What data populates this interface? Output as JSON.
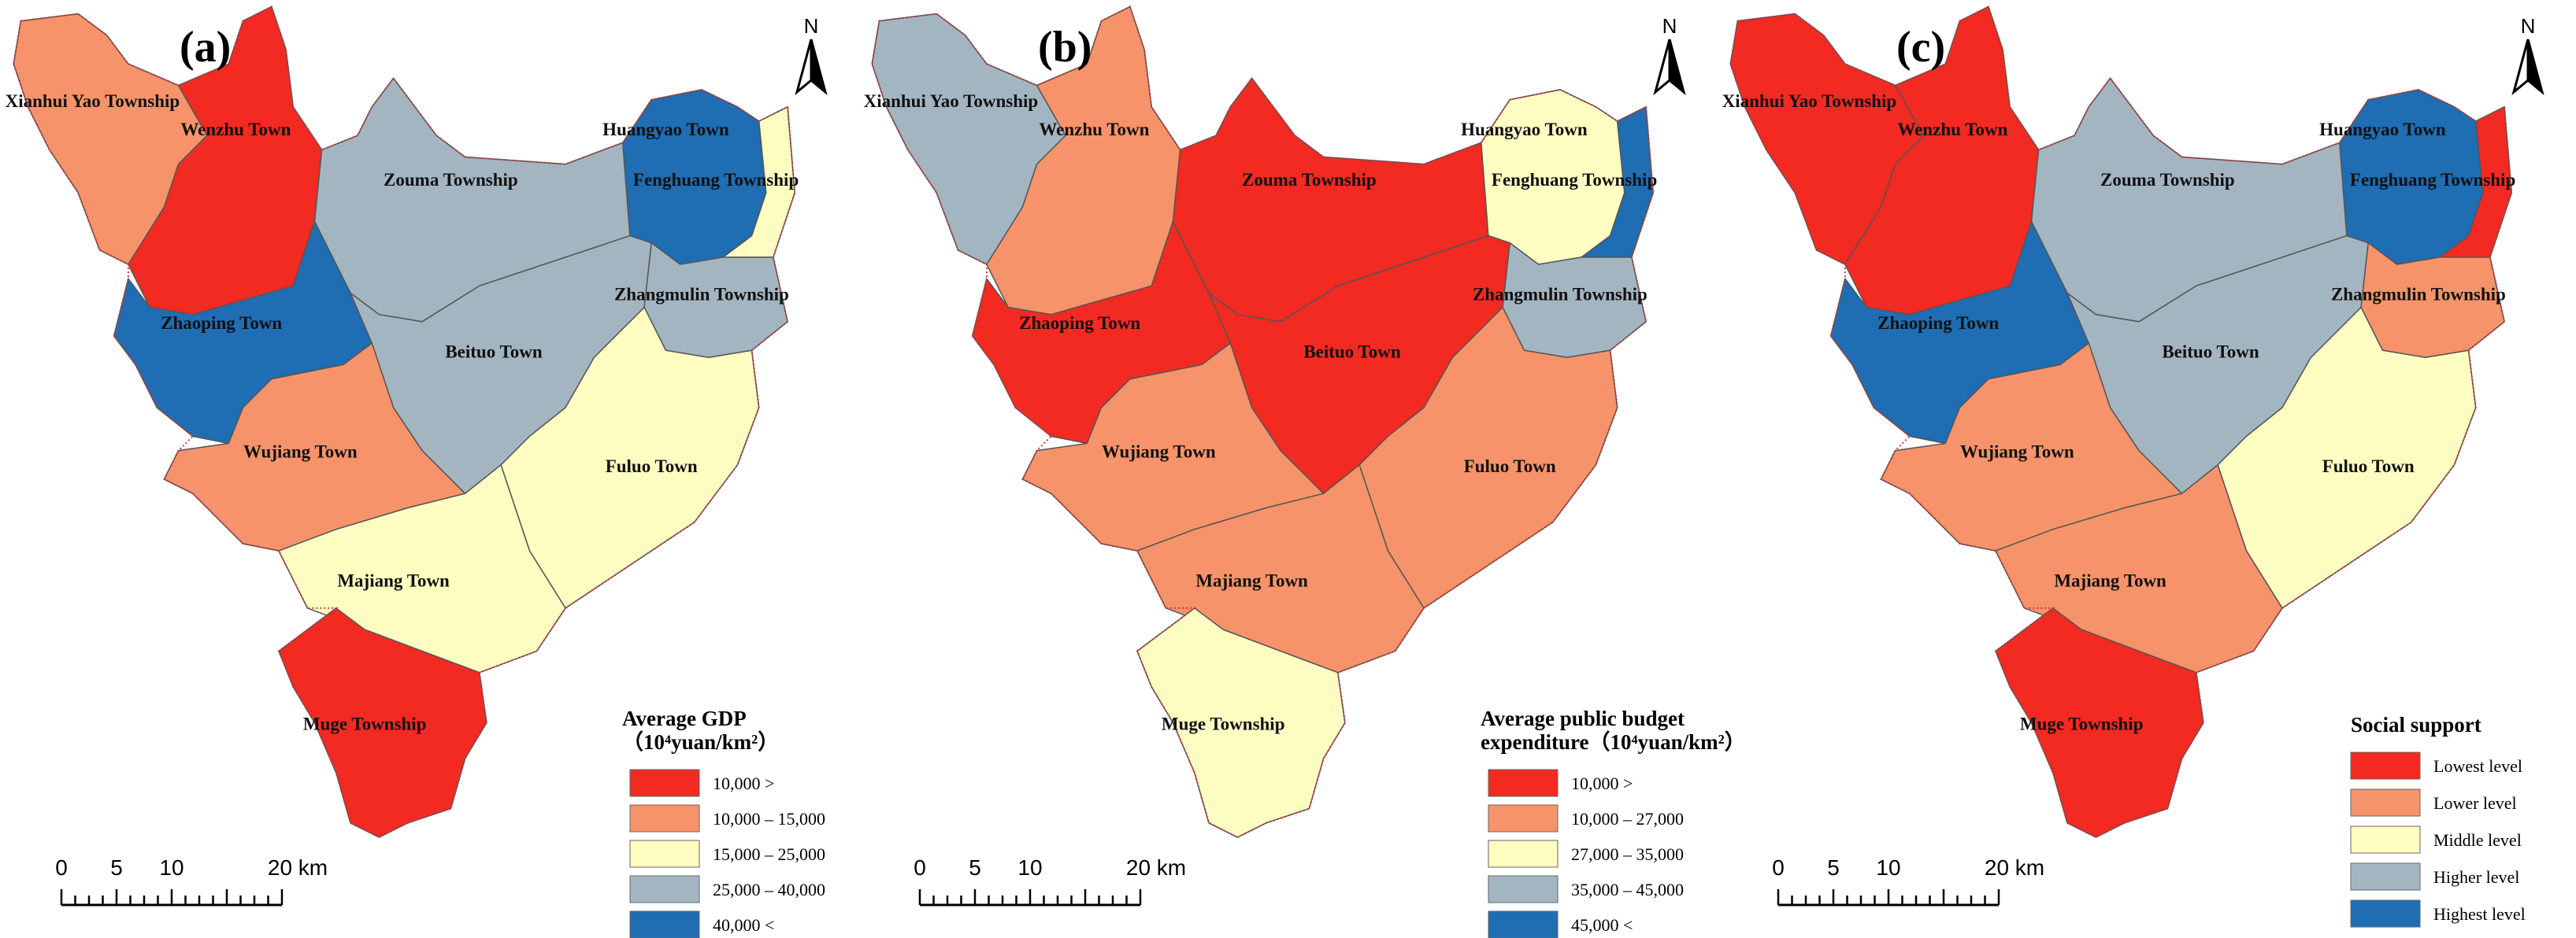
{
  "panels": [
    {
      "id": "a",
      "label": "(a)",
      "legend": {
        "title_lines": [
          "Average GDP",
          "（10⁴yuan/km²）"
        ],
        "classes": [
          {
            "label": "10,000 >",
            "color": "#f22a22"
          },
          {
            "label": "10,000 – 15,000",
            "color": "#f7936a"
          },
          {
            "label": "15,000 – 25,000",
            "color": "#fdfdc2"
          },
          {
            "label": "25,000 – 40,000",
            "color": "#a4b5c2"
          },
          {
            "label": "40,000 <",
            "color": "#1f6db3"
          }
        ]
      },
      "regions": {
        "xianhui": 1,
        "wenzhu": 0,
        "zouma": 3,
        "huangyao": 4,
        "fenghuang": 2,
        "zhaoping": 4,
        "beituo": 3,
        "zhangmulin": 3,
        "wujiang": 1,
        "fuluo": 2,
        "majiang": 2,
        "muge": 0
      }
    },
    {
      "id": "b",
      "label": "(b)",
      "legend": {
        "title_lines": [
          "Average public budget",
          "expenditure（10⁴yuan/km²）"
        ],
        "classes": [
          {
            "label": "10,000 >",
            "color": "#f22a22"
          },
          {
            "label": "10,000 – 27,000",
            "color": "#f7936a"
          },
          {
            "label": "27,000 – 35,000",
            "color": "#fdfdc2"
          },
          {
            "label": "35,000 – 45,000",
            "color": "#a4b5c2"
          },
          {
            "label": "45,000 <",
            "color": "#1f6db3"
          }
        ]
      },
      "regions": {
        "xianhui": 3,
        "wenzhu": 1,
        "zouma": 0,
        "huangyao": 2,
        "fenghuang": 4,
        "zhaoping": 0,
        "beituo": 0,
        "zhangmulin": 3,
        "wujiang": 1,
        "fuluo": 1,
        "majiang": 1,
        "muge": 2
      }
    },
    {
      "id": "c",
      "label": "(c)",
      "legend": {
        "title_lines": [
          "Social support"
        ],
        "classes": [
          {
            "label": "Lowest level",
            "color": "#f22a22"
          },
          {
            "label": "Lower level",
            "color": "#f7936a"
          },
          {
            "label": "Middle level",
            "color": "#fdfdc2"
          },
          {
            "label": "Higher level",
            "color": "#a4b5c2"
          },
          {
            "label": "Highest level",
            "color": "#1f6db3"
          }
        ]
      },
      "regions": {
        "xianhui": 0,
        "wenzhu": 0,
        "zouma": 3,
        "huangyao": 4,
        "fenghuang": 0,
        "zhaoping": 4,
        "beituo": 3,
        "zhangmulin": 1,
        "wujiang": 1,
        "fuluo": 2,
        "majiang": 1,
        "muge": 0
      }
    }
  ],
  "region_names": {
    "xianhui": "Xianhui Yao Township",
    "wenzhu": "Wenzhu Town",
    "zouma": "Zouma Township",
    "huangyao": "Huangyao Town",
    "fenghuang": "Fenghuang Township",
    "zhaoping": "Zhaoping Town",
    "beituo": "Beituo Town",
    "zhangmulin": "Zhangmulin Township",
    "wujiang": "Wujiang Town",
    "fuluo": "Fuluo Town",
    "majiang": "Majiang Town",
    "muge": "Muge Township"
  },
  "north_arrow": "N",
  "scale_bar": {
    "ticks": [
      "0",
      "5",
      "10",
      "20 km"
    ]
  }
}
